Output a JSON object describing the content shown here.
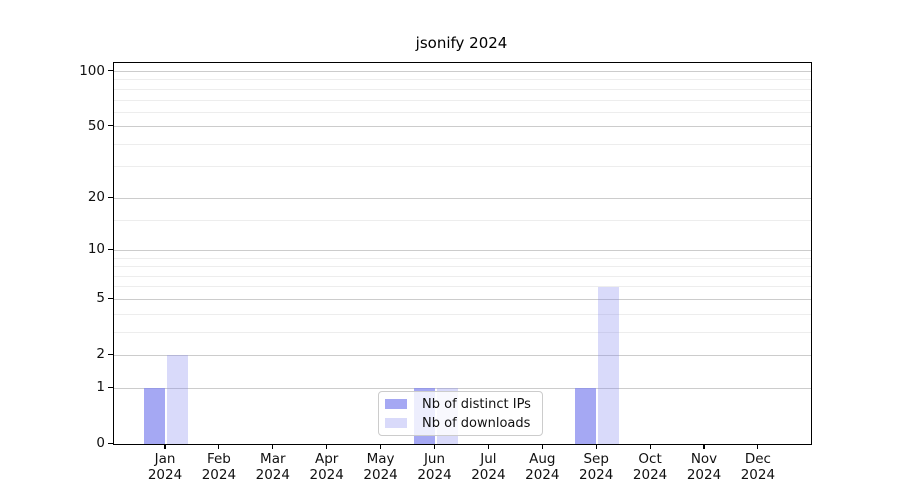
{
  "chart_data": {
    "type": "bar",
    "title": "jsonify 2024",
    "categories": [
      "Jan",
      "Feb",
      "Mar",
      "Apr",
      "May",
      "Jun",
      "Jul",
      "Aug",
      "Sep",
      "Oct",
      "Nov",
      "Dec"
    ],
    "category_year": "2024",
    "series": [
      {
        "name": "Nb of distinct IPs",
        "color": "rgba(130,134,238,0.72)",
        "values": [
          1,
          0,
          0,
          0,
          0,
          1,
          0,
          0,
          1,
          0,
          0,
          0
        ]
      },
      {
        "name": "Nb of downloads",
        "color": "rgba(130,134,238,0.30)",
        "values": [
          2,
          0,
          0,
          0,
          0,
          1,
          0,
          0,
          6,
          0,
          0,
          0
        ]
      }
    ],
    "xlabel": "",
    "ylabel": "",
    "yscale": "log1p",
    "ylim": [
      0,
      114
    ],
    "yticks": [
      0,
      1,
      2,
      5,
      10,
      20,
      50,
      100
    ],
    "yticks_minor": [
      3,
      4,
      6,
      7,
      8,
      9,
      15,
      30,
      40,
      60,
      70,
      80,
      90
    ],
    "grid": true,
    "legend_position": "lower center"
  },
  "colors": {
    "grid_major": "#cccccc",
    "grid_minor": "#ededed",
    "spine": "#000000",
    "text": "#111111",
    "legend_border": "#cccccc",
    "legend_background": "rgba(255,255,255,0.8)"
  }
}
